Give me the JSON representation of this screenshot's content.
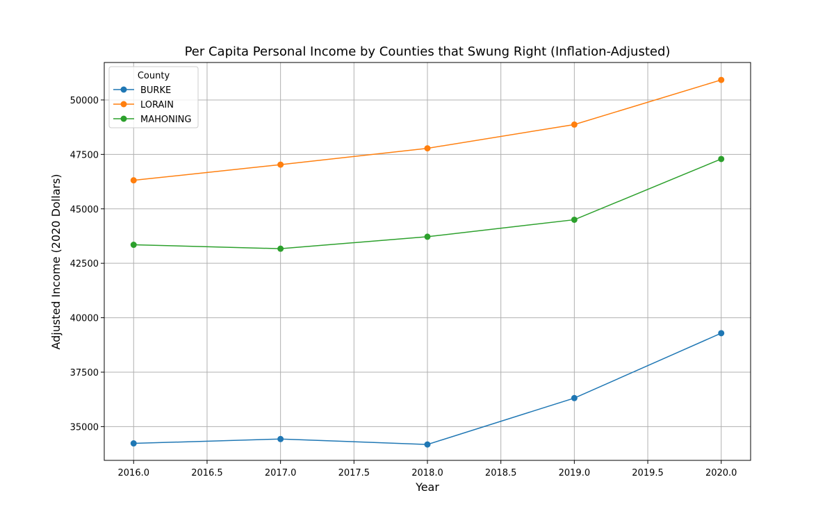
{
  "chart_data": {
    "type": "line",
    "title": "Per Capita Personal Income by Counties that Swung Right (Inflation-Adjusted)",
    "xlabel": "Year",
    "ylabel": "Adjusted Income (2020 Dollars)",
    "x": [
      2016,
      2017,
      2018,
      2019,
      2020
    ],
    "xlim": [
      2015.8,
      2020.2
    ],
    "ylim": [
      33450,
      51720
    ],
    "xticks": [
      2016.0,
      2016.5,
      2017.0,
      2017.5,
      2018.0,
      2018.5,
      2019.0,
      2019.5,
      2020.0
    ],
    "xtick_labels": [
      "2016.0",
      "2016.5",
      "2017.0",
      "2017.5",
      "2018.0",
      "2018.5",
      "2019.0",
      "2019.5",
      "2020.0"
    ],
    "yticks": [
      35000,
      37500,
      40000,
      42500,
      45000,
      47500,
      50000
    ],
    "ytick_labels": [
      "35000",
      "37500",
      "40000",
      "42500",
      "45000",
      "47500",
      "50000"
    ],
    "grid": true,
    "legend": {
      "title": "County",
      "position": "upper-left"
    },
    "series": [
      {
        "name": "BURKE",
        "color": "#1f77b4",
        "values": [
          34230,
          34430,
          34180,
          36310,
          39290
        ]
      },
      {
        "name": "LORAIN",
        "color": "#ff7f0e",
        "values": [
          46310,
          47030,
          47780,
          48870,
          50920
        ]
      },
      {
        "name": "MAHONING",
        "color": "#2ca02c",
        "values": [
          43350,
          43170,
          43720,
          44500,
          47290
        ]
      }
    ]
  }
}
